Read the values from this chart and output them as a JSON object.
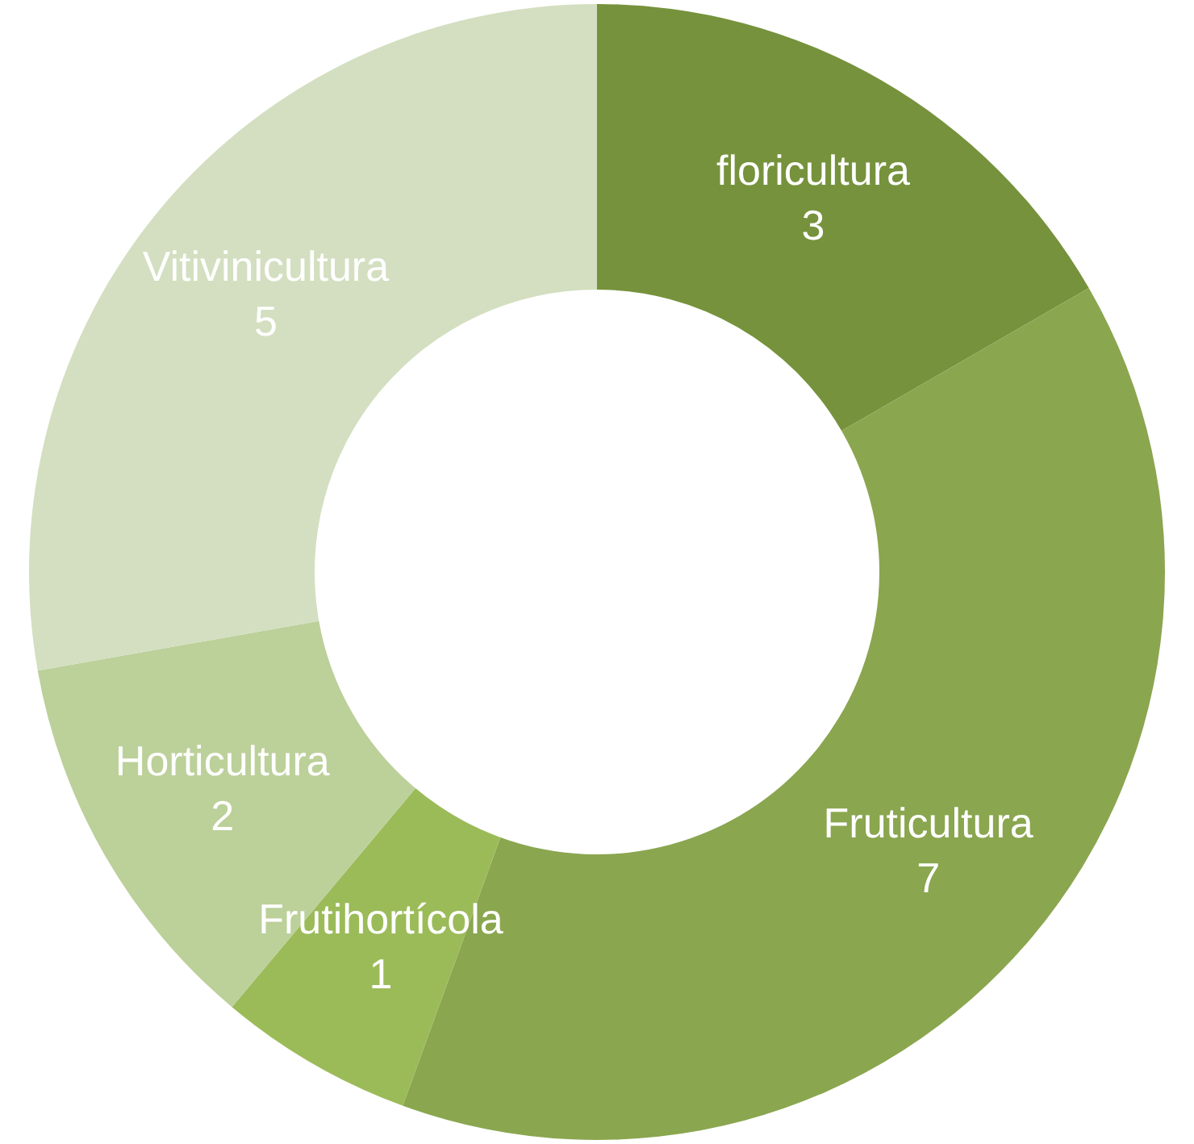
{
  "chart_data": {
    "type": "donut",
    "categories": [
      "floricultura",
      "Fruticultura",
      "Frutihortícola",
      "Horticultura",
      "Vitivinicultura"
    ],
    "values": [
      3,
      7,
      1,
      2,
      5
    ],
    "colors": [
      "#76923c",
      "#8aa64f",
      "#9bbb59",
      "#bcd09a",
      "#d3dfc0"
    ],
    "data_labels": true
  }
}
